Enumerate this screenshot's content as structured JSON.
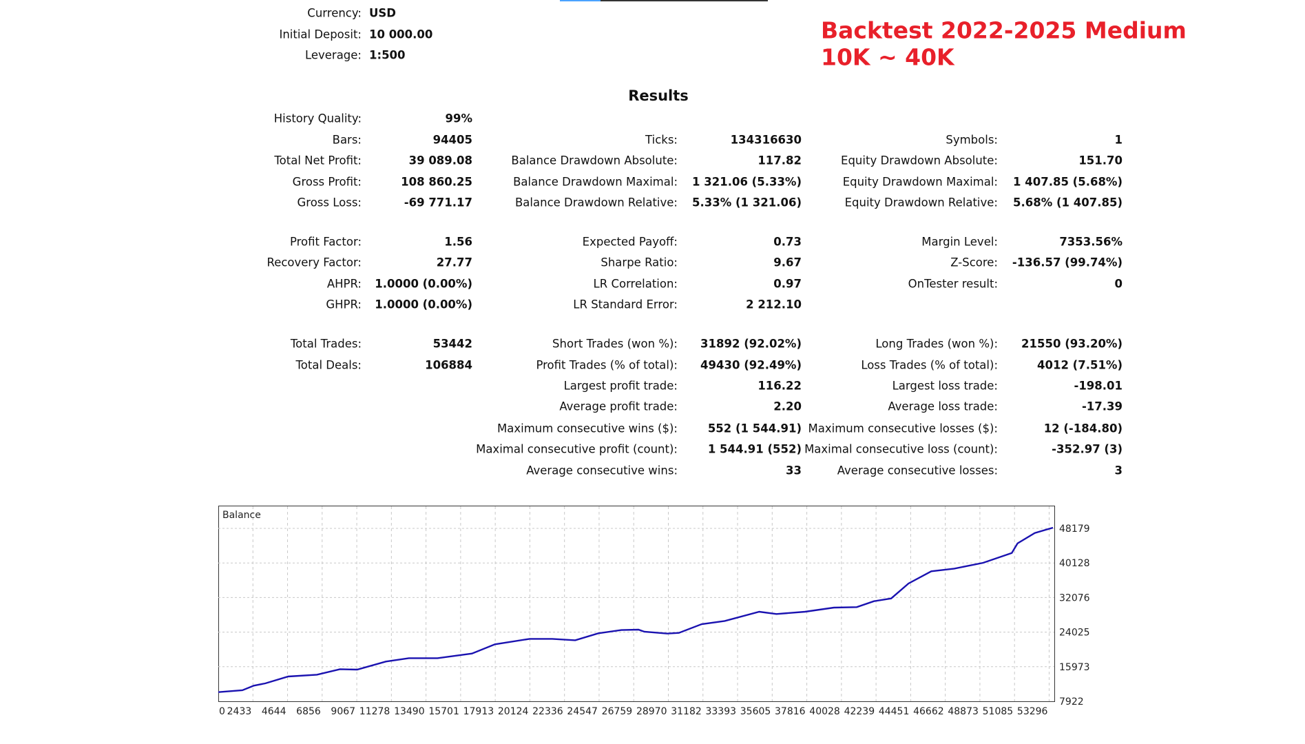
{
  "settings": {
    "currency_label": "Currency:",
    "currency_value": "USD",
    "deposit_label": "Initial Deposit:",
    "deposit_value": "10 000.00",
    "leverage_label": "Leverage:",
    "leverage_value": "1:500"
  },
  "overlay_title": {
    "line1": "Backtest 2022-2025 Medium",
    "line2": "10K ~ 40K",
    "color": "#e8202a"
  },
  "results": {
    "heading": "Results",
    "rows": [
      [
        {
          "label": "History Quality:",
          "value": "99%"
        },
        null,
        null
      ],
      [
        {
          "label": "Bars:",
          "value": "94405"
        },
        {
          "label": "Ticks:",
          "value": "134316630"
        },
        {
          "label": "Symbols:",
          "value": "1"
        }
      ],
      [
        {
          "label": "Total Net Profit:",
          "value": "39 089.08"
        },
        {
          "label": "Balance Drawdown Absolute:",
          "value": "117.82"
        },
        {
          "label": "Equity Drawdown Absolute:",
          "value": "151.70"
        }
      ],
      [
        {
          "label": "Gross Profit:",
          "value": "108 860.25"
        },
        {
          "label": "Balance Drawdown Maximal:",
          "value": "1 321.06 (5.33%)"
        },
        {
          "label": "Equity Drawdown Maximal:",
          "value": "1 407.85 (5.68%)"
        }
      ],
      [
        {
          "label": "Gross Loss:",
          "value": "-69 771.17"
        },
        {
          "label": "Balance Drawdown Relative:",
          "value": "5.33% (1 321.06)"
        },
        {
          "label": "Equity Drawdown Relative:",
          "value": "5.68% (1 407.85)"
        }
      ],
      [
        {
          "label": "Profit Factor:",
          "value": "1.56"
        },
        {
          "label": "Expected Payoff:",
          "value": "0.73"
        },
        {
          "label": "Margin Level:",
          "value": "7353.56%"
        }
      ],
      [
        {
          "label": "Recovery Factor:",
          "value": "27.77"
        },
        {
          "label": "Sharpe Ratio:",
          "value": "9.67"
        },
        {
          "label": "Z-Score:",
          "value": "-136.57 (99.74%)"
        }
      ],
      [
        {
          "label": "AHPR:",
          "value": "1.0000 (0.00%)"
        },
        {
          "label": "LR Correlation:",
          "value": "0.97"
        },
        {
          "label": "OnTester result:",
          "value": "0"
        }
      ],
      [
        {
          "label": "GHPR:",
          "value": "1.0000 (0.00%)"
        },
        {
          "label": "LR Standard Error:",
          "value": "2 212.10"
        },
        null
      ],
      [
        {
          "label": "Total Trades:",
          "value": "53442"
        },
        {
          "label": "Short Trades (won %):",
          "value": "31892 (92.02%)"
        },
        {
          "label": "Long Trades (won %):",
          "value": "21550 (93.20%)"
        }
      ],
      [
        {
          "label": "Total Deals:",
          "value": "106884"
        },
        {
          "label": "Profit Trades (% of total):",
          "value": "49430 (92.49%)"
        },
        {
          "label": "Loss Trades (% of total):",
          "value": "4012 (7.51%)"
        }
      ],
      [
        null,
        {
          "label": "Largest profit trade:",
          "value": "116.22"
        },
        {
          "label": "Largest loss trade:",
          "value": "-198.01"
        }
      ],
      [
        null,
        {
          "label": "Average profit trade:",
          "value": "2.20"
        },
        {
          "label": "Average loss trade:",
          "value": "-17.39"
        }
      ],
      [
        null,
        {
          "label": "Maximum consecutive wins ($):",
          "value": "552 (1 544.91)"
        },
        {
          "label": "Maximum consecutive losses ($):",
          "value": "12 (-184.80)"
        }
      ],
      [
        null,
        {
          "label": "Maximal consecutive profit (count):",
          "value": "1 544.91 (552)"
        },
        {
          "label": "Maximal consecutive loss (count):",
          "value": "-352.97 (3)"
        }
      ],
      [
        null,
        {
          "label": "Average consecutive wins:",
          "value": "33"
        },
        {
          "label": "Average consecutive losses:",
          "value": "3"
        }
      ]
    ]
  },
  "chart_data": {
    "type": "line",
    "title": "Balance",
    "line_color": "#1a12b0",
    "xlim": [
      0,
      53400
    ],
    "ylim": [
      7922,
      48179
    ],
    "grid": true,
    "x_ticks": [
      "0",
      "2433",
      "4644",
      "6856",
      "9067",
      "11278",
      "13490",
      "15701",
      "17913",
      "20124",
      "22336",
      "24547",
      "26759",
      "28970",
      "31182",
      "33393",
      "35605",
      "37816",
      "40028",
      "42239",
      "44451",
      "46662",
      "48873",
      "51085",
      "53296"
    ],
    "y_ticks": [
      "48179",
      "40128",
      "32076",
      "24025",
      "15973",
      "7922"
    ],
    "series": [
      {
        "name": "Balance",
        "points": [
          [
            0,
            10060
          ],
          [
            1540,
            10490
          ],
          [
            2270,
            11560
          ],
          [
            3000,
            12090
          ],
          [
            4470,
            13700
          ],
          [
            6300,
            14120
          ],
          [
            7770,
            15400
          ],
          [
            8870,
            15300
          ],
          [
            10700,
            17170
          ],
          [
            12170,
            17970
          ],
          [
            14000,
            17970
          ],
          [
            16200,
            19040
          ],
          [
            17670,
            21180
          ],
          [
            19880,
            22460
          ],
          [
            21330,
            22460
          ],
          [
            22800,
            22140
          ],
          [
            24270,
            23750
          ],
          [
            25740,
            24500
          ],
          [
            26840,
            24600
          ],
          [
            27210,
            24120
          ],
          [
            28680,
            23690
          ],
          [
            29420,
            23850
          ],
          [
            30880,
            25880
          ],
          [
            32350,
            26630
          ],
          [
            34550,
            28770
          ],
          [
            35650,
            28240
          ],
          [
            37480,
            28770
          ],
          [
            39320,
            29730
          ],
          [
            40780,
            29840
          ],
          [
            41880,
            31230
          ],
          [
            42980,
            31870
          ],
          [
            44090,
            35350
          ],
          [
            45540,
            38180
          ],
          [
            47010,
            38820
          ],
          [
            48850,
            40160
          ],
          [
            50680,
            42460
          ],
          [
            51050,
            44700
          ],
          [
            52150,
            47110
          ],
          [
            53310,
            48340
          ]
        ]
      }
    ]
  }
}
